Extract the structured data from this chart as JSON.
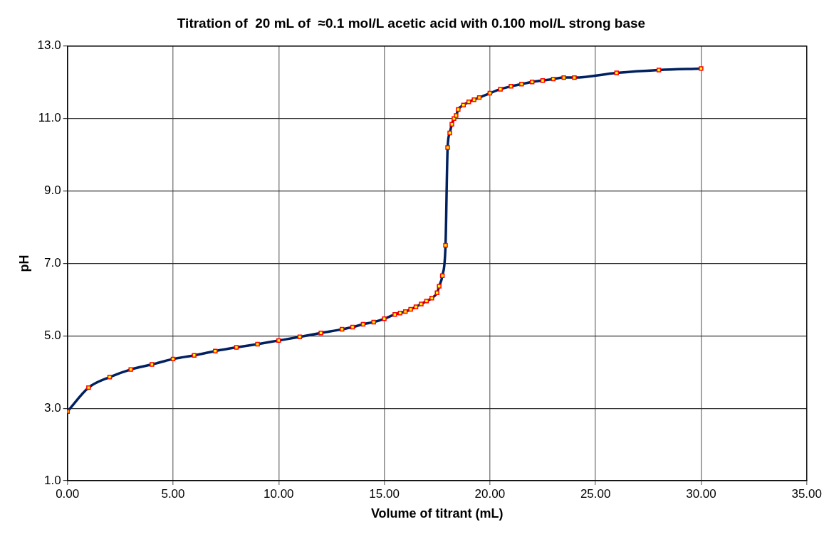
{
  "chart_data": {
    "type": "line",
    "title": "Titration of  20 mL of  ≈0.1 mol/L acetic acid with 0.100 mol/L strong base",
    "xlabel": "Volume of titrant (mL)",
    "ylabel": "pH",
    "series": [
      {
        "color": "#002060",
        "x": [
          0,
          1,
          2,
          3,
          4,
          5,
          6,
          7,
          8,
          9,
          10,
          11,
          12,
          13,
          13.5,
          14,
          14.5,
          15,
          15.5,
          15.75,
          16,
          16.25,
          16.5,
          16.75,
          17,
          17.25,
          17.5,
          17.6,
          17.75,
          17.9,
          18.0,
          18.1,
          18.2,
          18.3,
          18.4,
          18.5,
          18.75,
          19,
          19.25,
          19.5,
          20,
          20.5,
          21,
          21.5,
          22,
          22.5,
          23,
          23.5,
          24,
          26,
          28,
          30
        ],
        "values": [
          2.91,
          3.57,
          3.86,
          4.07,
          4.21,
          4.36,
          4.46,
          4.58,
          4.68,
          4.77,
          4.87,
          4.97,
          5.08,
          5.18,
          5.24,
          5.32,
          5.38,
          5.47,
          5.59,
          5.63,
          5.67,
          5.73,
          5.8,
          5.88,
          5.96,
          6.04,
          6.19,
          6.37,
          6.66,
          7.5,
          10.2,
          10.6,
          10.84,
          11.0,
          11.08,
          11.25,
          11.37,
          11.46,
          11.52,
          11.58,
          11.7,
          11.81,
          11.89,
          11.95,
          12.01,
          12.05,
          12.09,
          12.13,
          12.13,
          12.26,
          12.34,
          12.38
        ]
      }
    ],
    "xlim": [
      0,
      35
    ],
    "xticks": [
      {
        "value": 0,
        "label": "0.00"
      },
      {
        "value": 5,
        "label": "5.00"
      },
      {
        "value": 10,
        "label": "10.00"
      },
      {
        "value": 15,
        "label": "15.00"
      },
      {
        "value": 20,
        "label": "20.00"
      },
      {
        "value": 25,
        "label": "25.00"
      },
      {
        "value": 30,
        "label": "30.00"
      },
      {
        "value": 35,
        "label": "35.00"
      }
    ],
    "ylim": [
      1,
      13
    ],
    "yticks": [
      {
        "value": 1,
        "label": "1.0"
      },
      {
        "value": 3,
        "label": "3.0"
      },
      {
        "value": 5,
        "label": "5.0"
      },
      {
        "value": 7,
        "label": "7.0"
      },
      {
        "value": 9,
        "label": "9.0"
      },
      {
        "value": 11,
        "label": "11.0"
      },
      {
        "value": 13,
        "label": "13.0"
      }
    ],
    "grid": true,
    "legend": false,
    "marker": "square",
    "line_style": "solid"
  }
}
